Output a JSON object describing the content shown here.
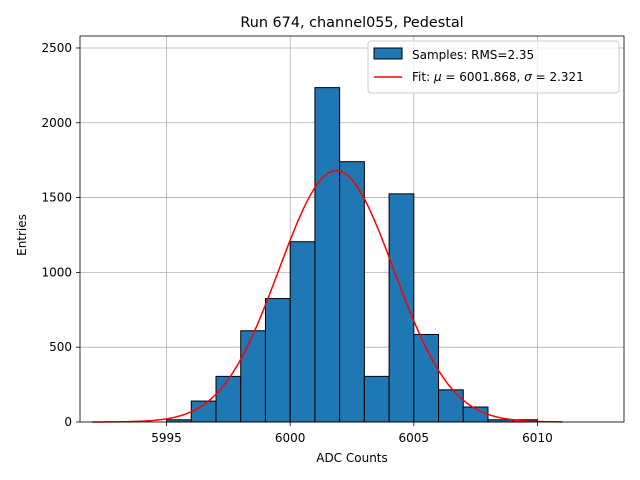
{
  "chart_data": {
    "type": "bar",
    "title": "Run 674, channel055, Pedestal",
    "xlabel": "ADC Counts",
    "ylabel": "Entries",
    "xlim": [
      5991.5,
      6013.5
    ],
    "ylim": [
      0,
      2580
    ],
    "xticks": [
      5995,
      6000,
      6005,
      6010
    ],
    "yticks": [
      0,
      500,
      1000,
      1500,
      2000,
      2500
    ],
    "grid": true,
    "legend_position": "top-right",
    "histogram": {
      "name": "Samples: RMS=2.35",
      "color": "#1f77b4",
      "bin_width": 1,
      "bin_starts": [
        5995,
        5996,
        5997,
        5998,
        5999,
        6000,
        6001,
        6002,
        6003,
        6004,
        6005,
        6006,
        6007,
        6008,
        6009
      ],
      "counts": [
        15,
        140,
        305,
        610,
        825,
        1205,
        2235,
        1740,
        305,
        1525,
        585,
        215,
        100,
        15,
        15
      ]
    },
    "fit": {
      "name": "Fit: μ = 6001.868, σ = 2.321",
      "label_prefix": "Fit: ",
      "mu_symbol": "μ",
      "sigma_symbol": "σ",
      "mu_text": " = 6001.868, ",
      "sigma_text": " = 2.321",
      "color": "#ff0000",
      "mu": 6001.868,
      "sigma": 2.321,
      "peak": 1680,
      "x_range": [
        5992,
        6011
      ]
    }
  }
}
